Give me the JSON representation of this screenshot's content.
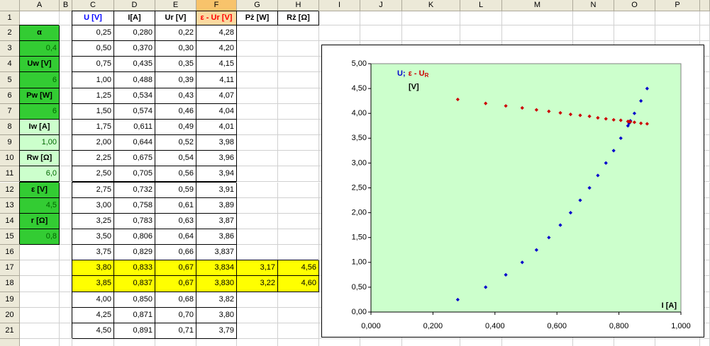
{
  "sheet": {
    "columns": [
      "A",
      "B",
      "C",
      "D",
      "E",
      "F",
      "G",
      "H",
      "I",
      "J",
      "K",
      "L",
      "M",
      "N",
      "O",
      "P"
    ],
    "row_numbers": [
      1,
      2,
      3,
      4,
      5,
      6,
      7,
      8,
      9,
      10,
      11,
      12,
      13,
      14,
      15,
      16,
      17,
      18,
      19,
      20,
      21
    ],
    "header_row": [
      "U [V]",
      "I[A]",
      "Ur [V]",
      "ε - Ur [V]",
      "Pż [W]",
      "Rż [Ω]"
    ],
    "params": [
      "α",
      "0,4",
      "Uw [V]",
      "6",
      "Pw [W]",
      "6",
      "Iw [A]",
      "1,00",
      "Rw [Ω]",
      "6,0",
      "ε [V]",
      "4,5",
      "r [Ω]",
      "0,8"
    ],
    "table": [
      [
        "0,25",
        "0,280",
        "0,22",
        "4,28"
      ],
      [
        "0,50",
        "0,370",
        "0,30",
        "4,20"
      ],
      [
        "0,75",
        "0,435",
        "0,35",
        "4,15"
      ],
      [
        "1,00",
        "0,488",
        "0,39",
        "4,11"
      ],
      [
        "1,25",
        "0,534",
        "0,43",
        "4,07"
      ],
      [
        "1,50",
        "0,574",
        "0,46",
        "4,04"
      ],
      [
        "1,75",
        "0,611",
        "0,49",
        "4,01"
      ],
      [
        "2,00",
        "0,644",
        "0,52",
        "3,98"
      ],
      [
        "2,25",
        "0,675",
        "0,54",
        "3,96"
      ],
      [
        "2,50",
        "0,705",
        "0,56",
        "3,94"
      ],
      [
        "2,75",
        "0,732",
        "0,59",
        "3,91"
      ],
      [
        "3,00",
        "0,758",
        "0,61",
        "3,89"
      ],
      [
        "3,25",
        "0,783",
        "0,63",
        "3,87"
      ],
      [
        "3,50",
        "0,806",
        "0,64",
        "3,86"
      ],
      [
        "3,75",
        "0,829",
        "0,66",
        "3,837"
      ],
      [
        "3,80",
        "0,833",
        "0,67",
        "3,834",
        "3,17",
        "4,56"
      ],
      [
        "3,85",
        "0,837",
        "0,67",
        "3,830",
        "3,22",
        "4,60"
      ],
      [
        "4,00",
        "0,850",
        "0,68",
        "3,82"
      ],
      [
        "4,25",
        "0,871",
        "0,70",
        "3,80"
      ],
      [
        "4,50",
        "0,891",
        "0,71",
        "3,79"
      ]
    ]
  },
  "chart_data": {
    "type": "scatter",
    "x": [
      0.28,
      0.37,
      0.435,
      0.488,
      0.534,
      0.574,
      0.611,
      0.644,
      0.675,
      0.705,
      0.732,
      0.758,
      0.783,
      0.806,
      0.829,
      0.833,
      0.837,
      0.85,
      0.871,
      0.891
    ],
    "series": [
      {
        "color": "#0000cc",
        "values": [
          0.25,
          0.5,
          0.75,
          1.0,
          1.25,
          1.5,
          1.75,
          2.0,
          2.25,
          2.5,
          2.75,
          3.0,
          3.25,
          3.5,
          3.75,
          3.8,
          3.85,
          4.0,
          4.25,
          4.5
        ]
      },
      {
        "color": "#cc0000",
        "values": [
          4.28,
          4.2,
          4.15,
          4.11,
          4.07,
          4.04,
          4.01,
          3.98,
          3.96,
          3.94,
          3.91,
          3.89,
          3.87,
          3.86,
          3.837,
          3.834,
          3.83,
          3.82,
          3.8,
          3.79
        ]
      }
    ],
    "xlim": [
      0,
      1
    ],
    "ylim": [
      0,
      5
    ],
    "xticks": [
      {
        "value": 0,
        "label": "0,000"
      },
      {
        "value": 0.2,
        "label": "0,200"
      },
      {
        "value": 0.4,
        "label": "0,400"
      },
      {
        "value": 0.6,
        "label": "0,600"
      },
      {
        "value": 0.8,
        "label": "0,800"
      },
      {
        "value": 1,
        "label": "1,000"
      }
    ],
    "yticks": [
      {
        "value": 0,
        "label": "0,00"
      },
      {
        "value": 0.5,
        "label": "0,50"
      },
      {
        "value": 1,
        "label": "1,00"
      },
      {
        "value": 1.5,
        "label": "1,50"
      },
      {
        "value": 2,
        "label": "2,00"
      },
      {
        "value": 2.5,
        "label": "2,50"
      },
      {
        "value": 3,
        "label": "3,00"
      },
      {
        "value": 3.5,
        "label": "3,50"
      },
      {
        "value": 4,
        "label": "4,00"
      },
      {
        "value": 4.5,
        "label": "4,50"
      },
      {
        "value": 5,
        "label": "5,00"
      }
    ],
    "xlabel": "I [A]",
    "ylabel": [
      "U;",
      "ε - U",
      "R",
      "[V]"
    ],
    "background": "#ccffcc",
    "grid": false
  }
}
